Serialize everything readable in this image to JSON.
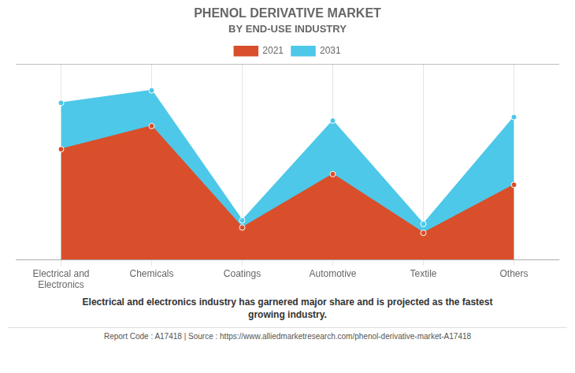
{
  "chart_data": {
    "type": "area",
    "title": "PHENOL DERIVATIVE MARKET",
    "subtitle": "BY END-USE INDUSTRY",
    "categories": [
      "Electrical and\nElectronics",
      "Chemicals",
      "Coatings",
      "Automotive",
      "Textile",
      "Others"
    ],
    "series": [
      {
        "name": "2021",
        "color": "#d94f2b",
        "values": [
          62,
          75,
          18,
          48,
          15,
          42
        ]
      },
      {
        "name": "2031",
        "color": "#4dc8e8",
        "values": [
          88,
          95,
          22,
          78,
          20,
          80
        ]
      }
    ],
    "ylim": [
      0,
      110
    ],
    "grid": true,
    "legend": "top",
    "tick_labels": "x",
    "annotations": [
      "Electrical and electronics industry has garnered major share and is projected as the fastest\ngrowing industry.",
      "Report Code : A17418  |  Source : https://www.alliedmarketresearch.com/phenol-derivative-market-A17418"
    ]
  }
}
